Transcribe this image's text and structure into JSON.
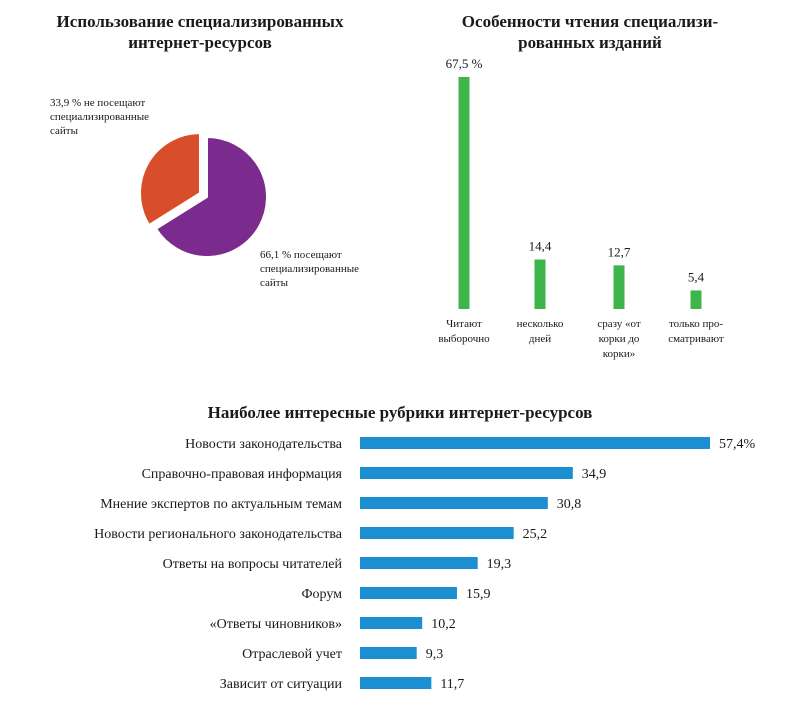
{
  "chart_data": [
    {
      "type": "pie",
      "title": "Использование специализированных\nинтернет-ресурсов",
      "slices": [
        {
          "label": "33,9 % не посещают\nспециализированные\nсайты",
          "value": 33.9,
          "color": "#d94e2a"
        },
        {
          "label": "66,1 % посещают\nспециализированные\nсайты",
          "value": 66.1,
          "color": "#7b2a8e"
        }
      ]
    },
    {
      "type": "bar",
      "title": "Особенности чтения специализи-\nрованных изданий",
      "categories": [
        "Читают\nвыборочно",
        "несколько\nдней",
        "сразу «от\nкорки до\nкорки»",
        "только про-\nсматривают"
      ],
      "values": [
        67.5,
        14.4,
        12.7,
        5.4
      ],
      "value_labels": [
        "67,5 %",
        "14,4",
        "12,7",
        "5,4"
      ],
      "color": "#3db54a"
    },
    {
      "type": "bar",
      "orientation": "horizontal",
      "title": "Наиболее интересные рубрики интернет-ресурсов",
      "categories": [
        "Новости законодательства",
        "Справочно-правовая информация",
        "Мнение экспертов по актуальным темам",
        "Новости регионального законодательства",
        "Ответы на вопросы читателей",
        "Форум",
        "«Ответы чиновников»",
        "Отраслевой учет",
        "Зависит от ситуации"
      ],
      "values": [
        57.4,
        34.9,
        30.8,
        25.2,
        19.3,
        15.9,
        10.2,
        9.3,
        11.7
      ],
      "value_labels": [
        "57,4%",
        "34,9",
        "30,8",
        "25,2",
        "19,3",
        "15,9",
        "10,2",
        "9,3",
        "11,7"
      ],
      "color": "#1b8fd2"
    }
  ]
}
